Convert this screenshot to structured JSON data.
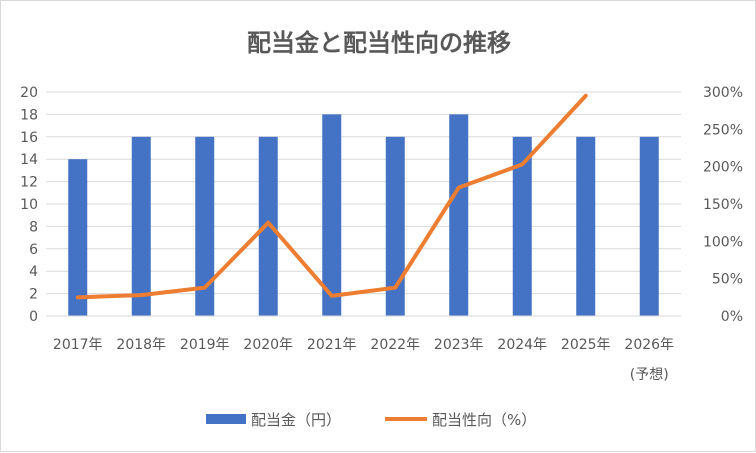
{
  "colors": {
    "bar": "#4472c4",
    "line": "#ed7d31",
    "grid": "#d9d9d9",
    "text": "#595959"
  },
  "chart_data": {
    "type": "bar",
    "title": "配当金と配当性向の推移",
    "categories": [
      "2017年",
      "2018年",
      "2019年",
      "2020年",
      "2021年",
      "2022年",
      "2023年",
      "2024年",
      "2025年",
      "2026年"
    ],
    "category_sublabels": [
      "",
      "",
      "",
      "",
      "",
      "",
      "",
      "",
      "",
      "(予想)"
    ],
    "series": [
      {
        "name": "配当金（円）",
        "type": "bar",
        "axis": "left",
        "values": [
          14,
          16,
          16,
          16,
          18,
          16,
          18,
          16,
          16,
          16
        ]
      },
      {
        "name": "配当性向（%）",
        "type": "line",
        "axis": "right",
        "values": [
          25,
          28,
          38,
          125,
          27,
          38,
          172,
          203,
          295,
          null
        ]
      }
    ],
    "y_left": {
      "min": 0,
      "max": 20,
      "step": 2,
      "tick_labels": [
        "0",
        "2",
        "4",
        "6",
        "8",
        "10",
        "12",
        "14",
        "16",
        "18",
        "20"
      ]
    },
    "y_right": {
      "min": 0,
      "max": 300,
      "step": 50,
      "tick_labels": [
        "0%",
        "50%",
        "100%",
        "150%",
        "200%",
        "250%",
        "300%"
      ]
    },
    "grid": true,
    "legend_position": "bottom"
  }
}
